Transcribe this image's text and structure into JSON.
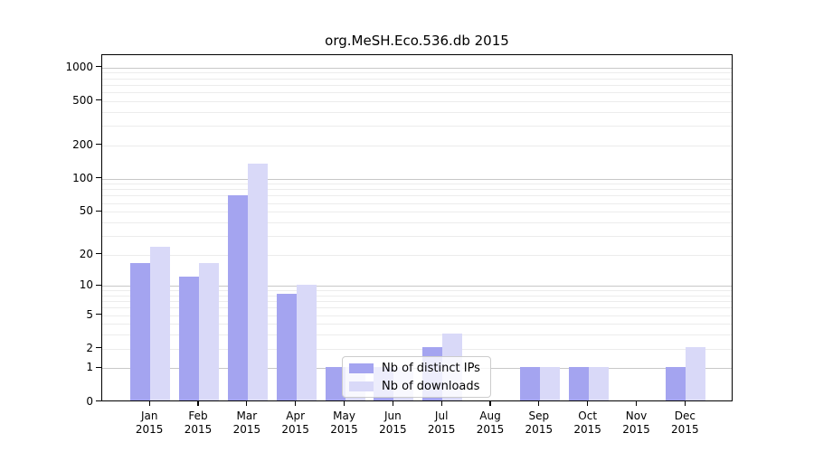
{
  "chart_data": {
    "type": "bar",
    "title": "org.MeSH.Eco.536.db 2015",
    "categories": [
      "Jan",
      "Feb",
      "Mar",
      "Apr",
      "May",
      "Jun",
      "Jul",
      "Aug",
      "Sep",
      "Oct",
      "Nov",
      "Dec"
    ],
    "category_year": "2015",
    "series": [
      {
        "name": "Nb of distinct IPs",
        "color": "#a4a4f0",
        "values": [
          16,
          12,
          68,
          8,
          1,
          1,
          2,
          0,
          1,
          1,
          0,
          1
        ]
      },
      {
        "name": "Nb of downloads",
        "color": "#d9d9f8",
        "values": [
          23,
          16,
          134,
          10,
          1,
          1,
          3,
          0,
          1,
          1,
          0,
          2
        ]
      }
    ],
    "xlabel": "",
    "ylabel": "",
    "y_axis": {
      "scale": "log1p",
      "tick_values": [
        0,
        1,
        2,
        5,
        10,
        20,
        50,
        100,
        200,
        500,
        1000
      ],
      "tick_labels": [
        "0",
        "1",
        "2",
        "5",
        "10",
        "20",
        "50",
        "100",
        "200",
        "500",
        "1000"
      ],
      "major_grid_values": [
        1,
        10,
        100,
        1000
      ],
      "ylim_max": 1300,
      "grid": "on"
    },
    "legend_position": "lower center-left inside plot",
    "colors": {
      "major_grid": "#c8c8c8",
      "minor_grid": "#ececec",
      "axis": "#000000",
      "background": "#ffffff"
    }
  }
}
